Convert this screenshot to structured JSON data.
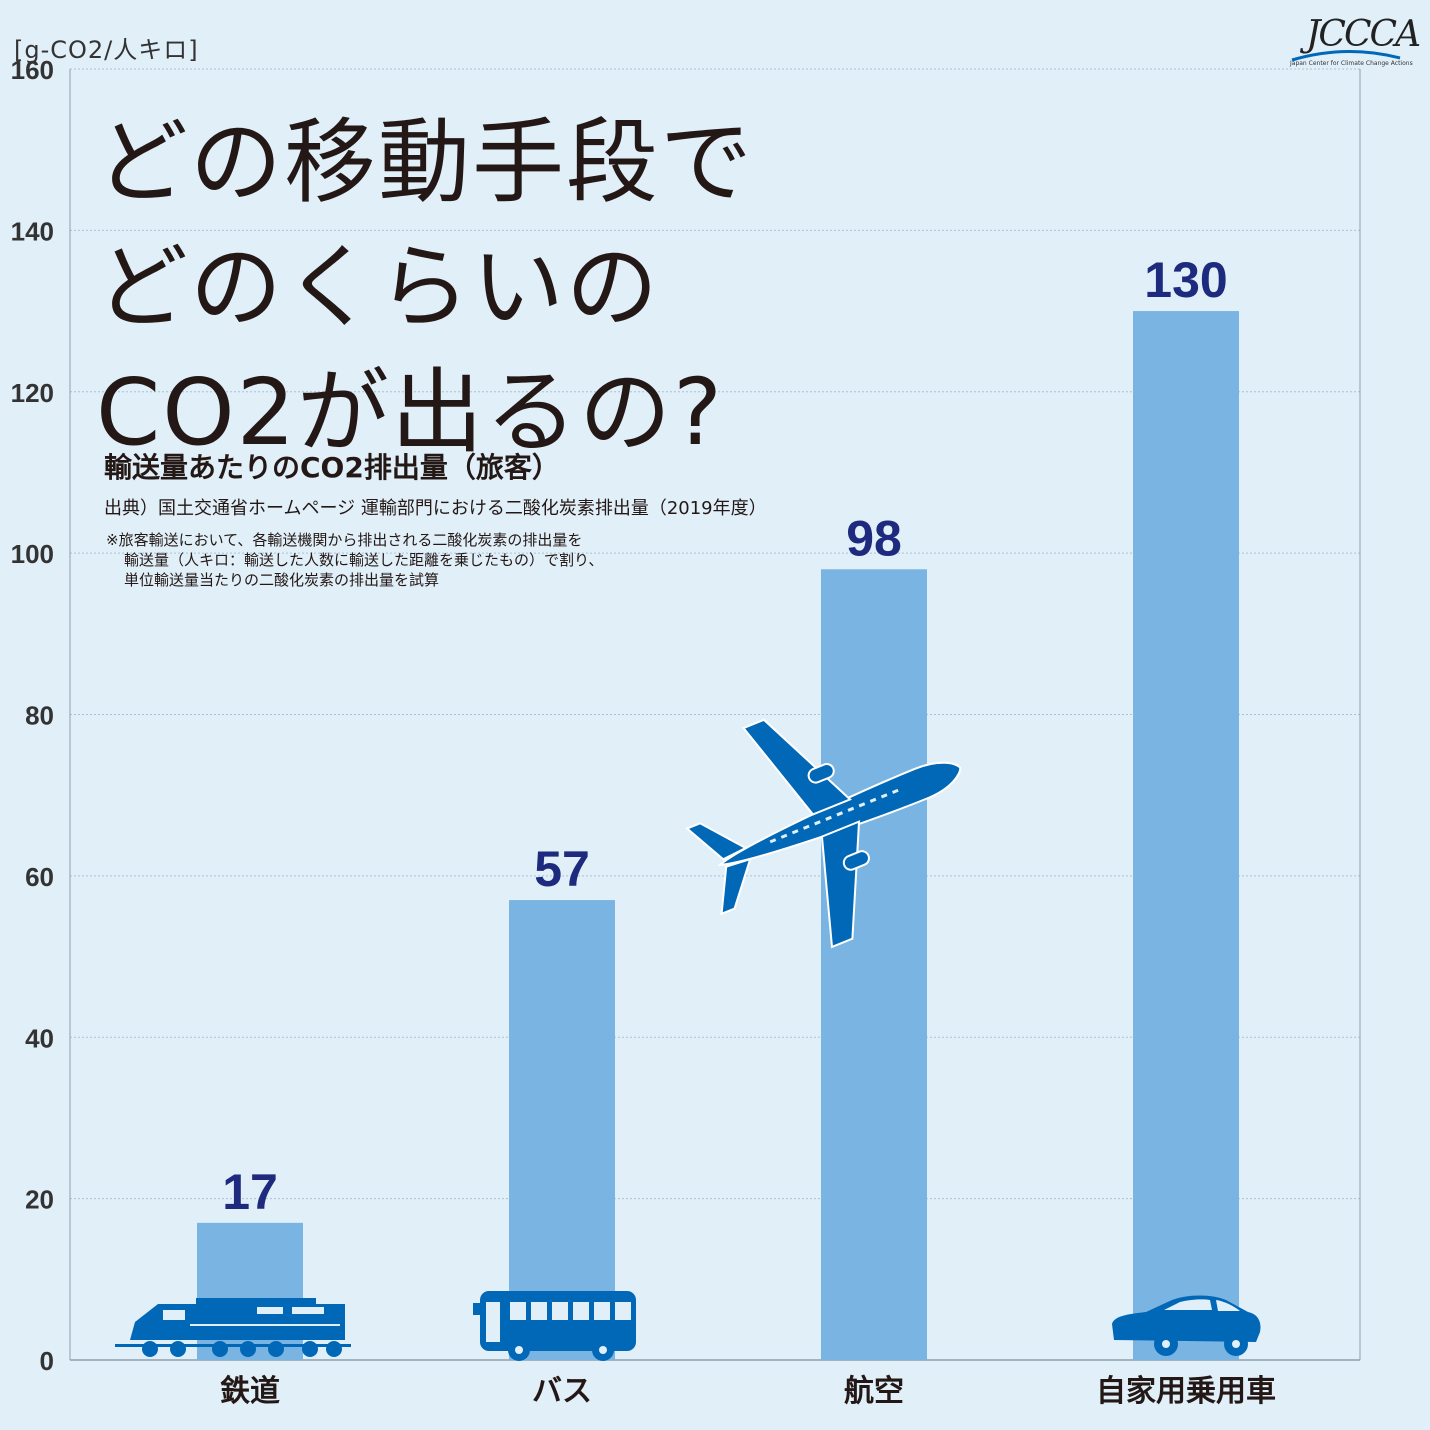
{
  "unit_label": "[g-CO2/人キロ]",
  "logo": {
    "text": "JCCCA",
    "subtext": "Japan Center for Climate Change Actions"
  },
  "headline": {
    "line1": "どの移動手段で",
    "line2": "どのくらいの",
    "line3": "CO2が出るの?"
  },
  "subtitle": "輸送量あたりのCO2排出量（旅客）",
  "source": "出典）国土交通省ホームページ 運輸部門における二酸化炭素排出量（2019年度）",
  "note": {
    "line1": "※旅客輸送において、各輸送機関から排出される二酸化炭素の排出量を",
    "line2": "輸送量（人キロ：輸送した人数に輸送した距離を乗じたもの）で割り、",
    "line3": "単位輸送量当たりの二酸化炭素の排出量を試算"
  },
  "colors": {
    "bar": "#7ab4e2",
    "value_label": "#1d2a7e",
    "icon": "#0068b7",
    "axis_text": "#333333",
    "grid": "#a9c3d6"
  },
  "chart_data": {
    "type": "bar",
    "categories": [
      "鉄道",
      "バス",
      "航空",
      "自家用乗用車"
    ],
    "values": [
      17,
      57,
      98,
      130
    ],
    "ylim": [
      0,
      160
    ],
    "yticks": [
      0,
      20,
      40,
      60,
      80,
      100,
      120,
      140,
      160
    ],
    "grid": true,
    "icons": [
      "train-icon",
      "bus-icon",
      "airplane-icon",
      "car-icon"
    ]
  }
}
